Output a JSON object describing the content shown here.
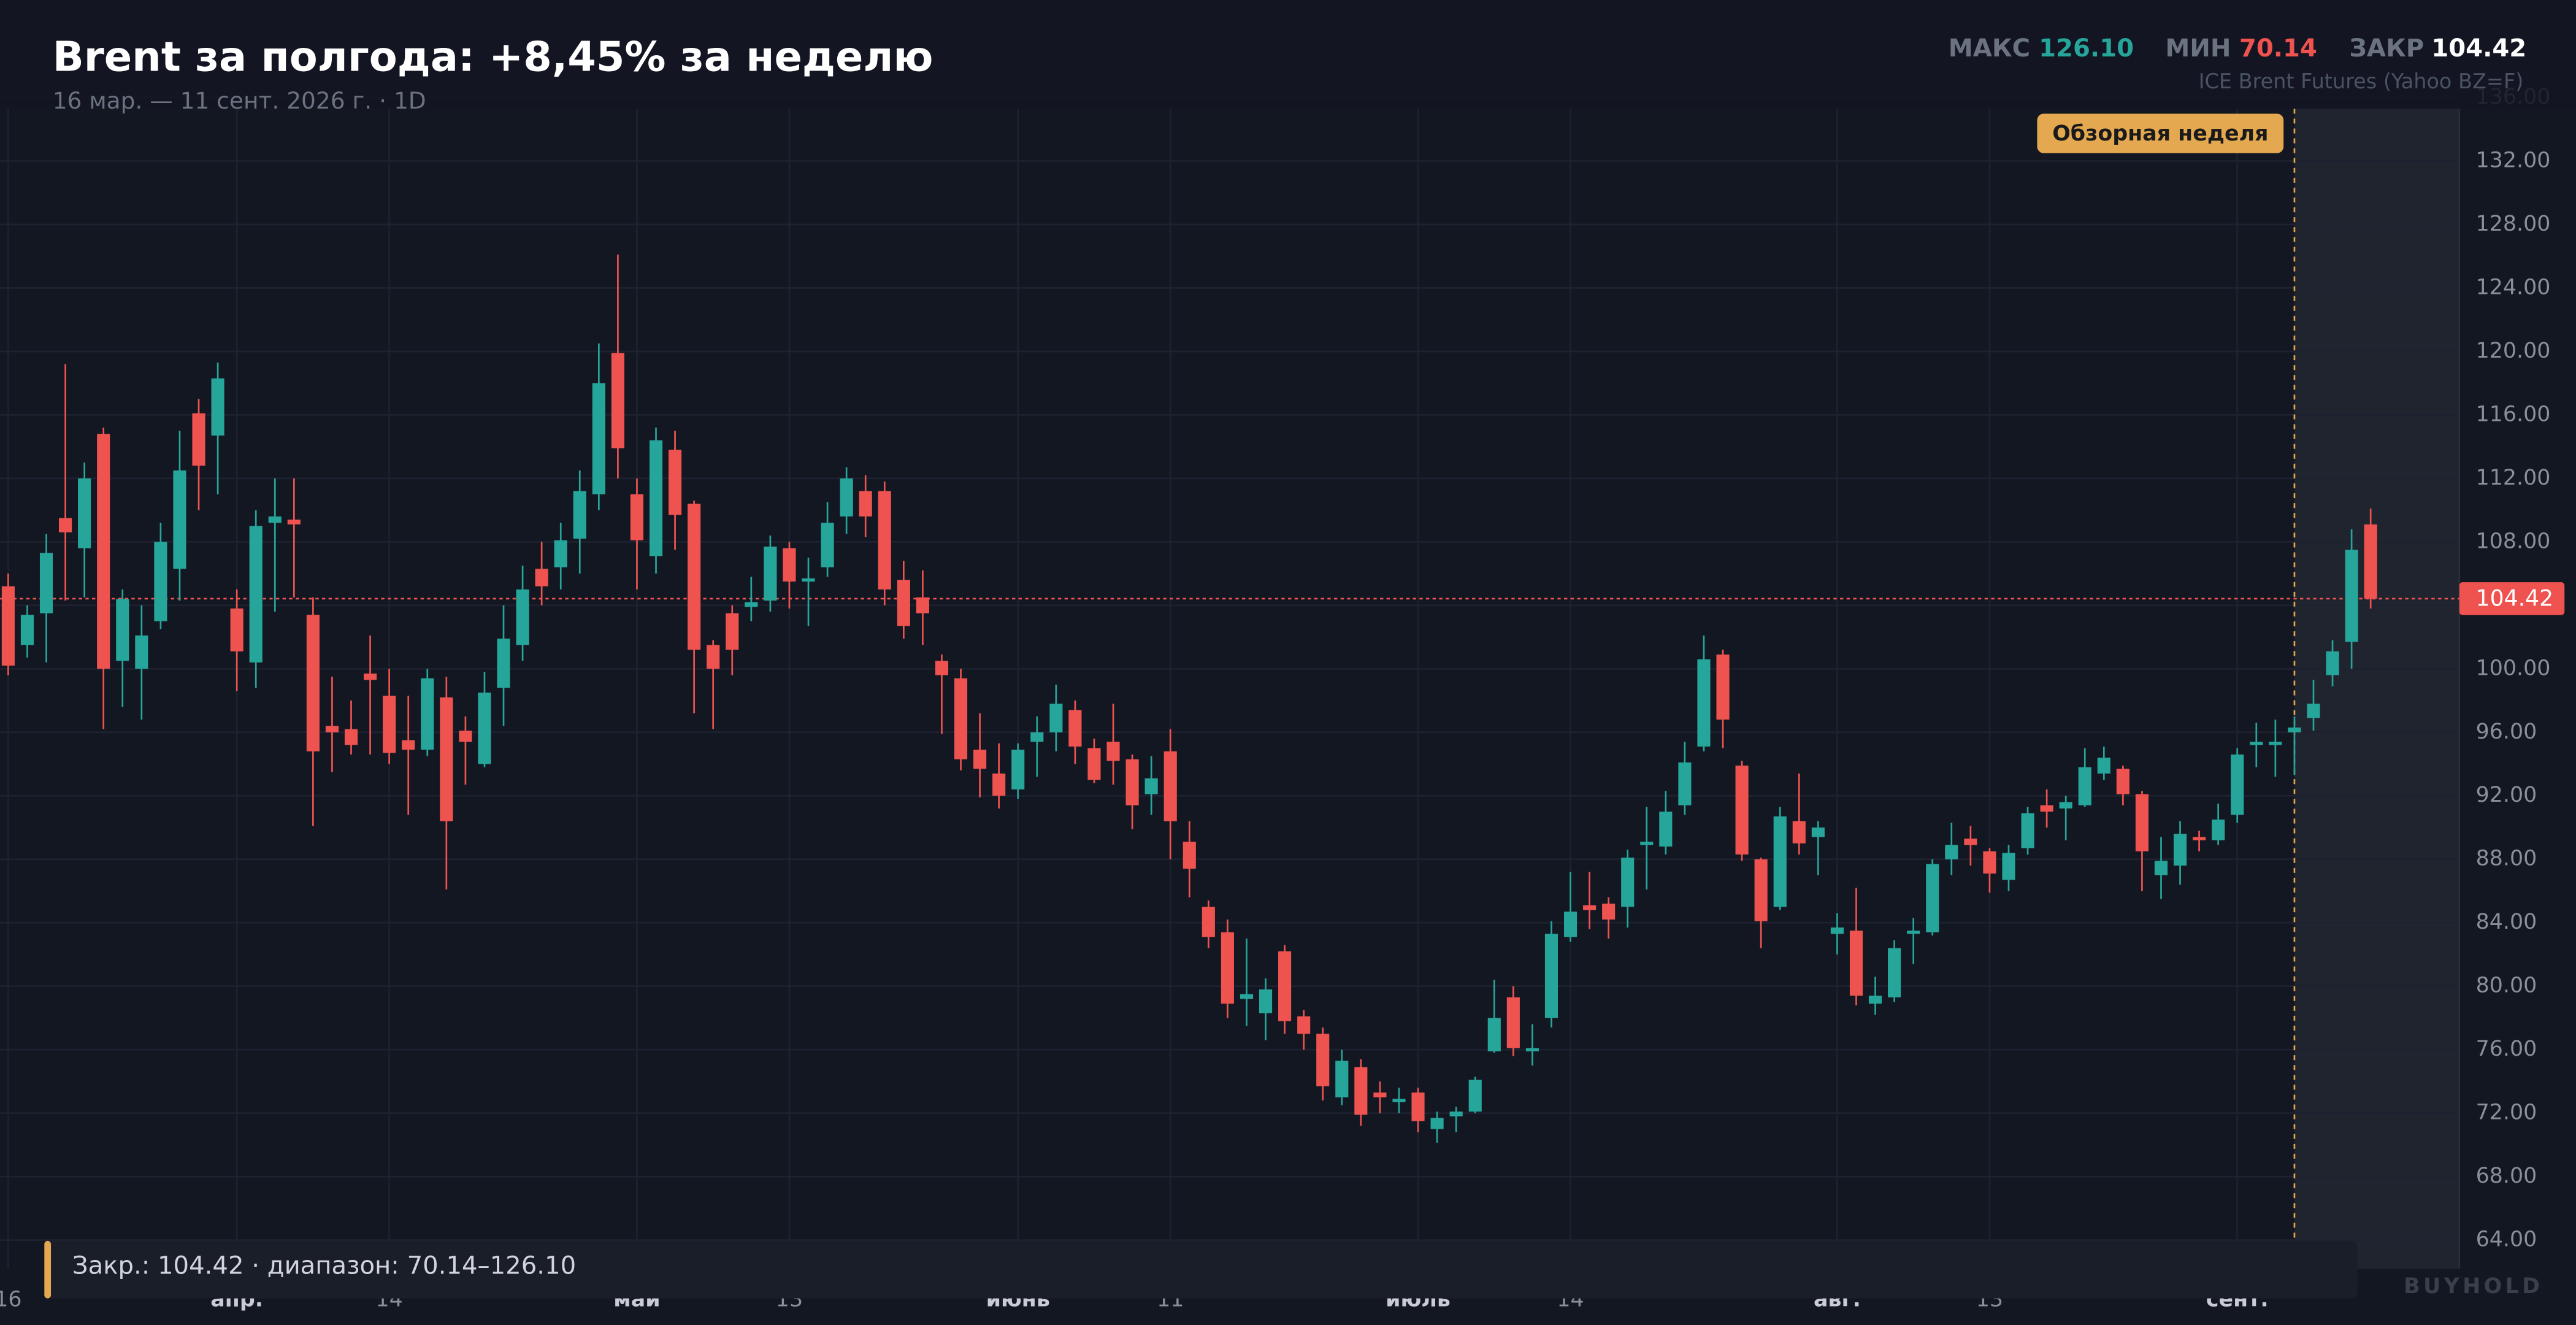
{
  "chart_data": {
    "type": "candlestick",
    "title": "Brent за полгода: +8,45% за неделю",
    "subtitle": "16 мар. — 11 сент. 2026 г. · 1D",
    "stats": [
      {
        "label": "МАКС",
        "value": "126.10"
      },
      {
        "label": "МИН",
        "value": "70.14"
      },
      {
        "label": "ЗАКР",
        "value": "104.42"
      }
    ],
    "source": "ICE Brent Futures (Yahoo BZ=F)",
    "highlight_label": "Обзорная неделя",
    "last_label": "104.42",
    "footer": "Закр.: 104.42 · диапазон: 70.14–126.10",
    "watermark": "BUYHOLD",
    "up_color": "#26a69a",
    "down_color": "#ef5350",
    "grid": true,
    "categories": [
      "16",
      null,
      null,
      null,
      null,
      null,
      null,
      null,
      null,
      null,
      null,
      null,
      "апр.",
      null,
      null,
      null,
      null,
      null,
      null,
      null,
      "14",
      null,
      null,
      null,
      null,
      null,
      null,
      null,
      null,
      null,
      null,
      null,
      null,
      "май",
      null,
      null,
      null,
      null,
      null,
      null,
      null,
      "13",
      null,
      null,
      null,
      null,
      null,
      null,
      null,
      null,
      null,
      null,
      null,
      "июнь",
      null,
      null,
      null,
      null,
      null,
      null,
      null,
      "11",
      null,
      null,
      null,
      null,
      null,
      null,
      null,
      null,
      null,
      null,
      null,
      null,
      "июль",
      null,
      null,
      null,
      null,
      null,
      null,
      null,
      "14",
      null,
      null,
      null,
      null,
      null,
      null,
      null,
      null,
      null,
      null,
      null,
      null,
      null,
      "авг.",
      null,
      null,
      null,
      null,
      null,
      null,
      null,
      "13",
      null,
      null,
      null,
      null,
      null,
      null,
      null,
      null,
      null,
      null,
      null,
      null,
      "сент.",
      null,
      null,
      null,
      null,
      null,
      null,
      null
    ],
    "open": [
      105.2,
      101.5,
      103.5,
      109.5,
      107.6,
      114.8,
      100.5,
      100,
      103,
      106.3,
      116.1,
      114.7,
      103.8,
      100.4,
      109.2,
      109.4,
      103.4,
      96.4,
      96.2,
      99.7,
      98.3,
      95.5,
      94.9,
      98.2,
      96.1,
      94,
      98.8,
      101.5,
      106.3,
      106.4,
      108.2,
      111,
      119.9,
      111,
      107.1,
      113.8,
      110.4,
      101.5,
      103.5,
      103.9,
      104.3,
      107.6,
      105.5,
      106.4,
      109.6,
      111.2,
      111.2,
      105.6,
      104.5,
      100.5,
      99.4,
      94.9,
      93.4,
      92.4,
      95.4,
      96,
      97.4,
      95,
      95.4,
      94.3,
      92.1,
      94.8,
      89.1,
      85,
      83.4,
      79.2,
      78.3,
      82.2,
      78.1,
      77,
      73,
      74.9,
      73.3,
      72.7,
      73.3,
      71,
      71.8,
      72.1,
      75.9,
      79.3,
      75.9,
      78,
      83.1,
      85.1,
      85.2,
      85,
      88.9,
      88.8,
      91.4,
      95.1,
      100.9,
      93.9,
      88,
      85,
      90.4,
      89.4,
      83.3,
      83.5,
      78.9,
      79.3,
      83.3,
      83.4,
      88,
      89.3,
      88.5,
      86.7,
      88.7,
      91.4,
      91.2,
      91.4,
      93.4,
      93.7,
      92.1,
      87,
      87.6,
      89.4,
      89.2,
      90.8,
      95.2,
      95.2,
      96,
      96.9,
      99.6,
      101.7,
      109.1
    ],
    "high": [
      106,
      104,
      108.5,
      119.2,
      113,
      115.2,
      105,
      104,
      109.2,
      115,
      117,
      119.3,
      105,
      110,
      112,
      112,
      104.5,
      99.5,
      98,
      102.1,
      100,
      98.3,
      100,
      99.5,
      97,
      99.8,
      104,
      106.5,
      108,
      109.2,
      112.5,
      120.5,
      126.1,
      112,
      115.2,
      115,
      110.6,
      101.8,
      104,
      105.8,
      108.4,
      108,
      107,
      110.5,
      112.7,
      112.2,
      111.8,
      106.8,
      106.2,
      100.9,
      100,
      97.2,
      95.3,
      95.3,
      97,
      99,
      98,
      95.6,
      97.8,
      94.6,
      94.5,
      96.2,
      90.4,
      85.4,
      84.2,
      83,
      80.5,
      82.6,
      78.5,
      77.4,
      76,
      75.4,
      74,
      73.6,
      73.6,
      72.1,
      72.4,
      74.3,
      80.4,
      80,
      77.6,
      84.1,
      87.2,
      87.2,
      85.6,
      88.6,
      91.3,
      92.3,
      95.4,
      102.1,
      101.2,
      94.2,
      88.1,
      91.3,
      93.4,
      90.4,
      84.6,
      86.2,
      80.6,
      82.9,
      84.3,
      88,
      90.3,
      90.1,
      88.7,
      88.9,
      91.3,
      92.4,
      92,
      95,
      95.1,
      93.9,
      92.3,
      89.4,
      90.4,
      89.8,
      91.5,
      95,
      96.6,
      96.8,
      97,
      99.3,
      101.8,
      108.8,
      110.1
    ],
    "low": [
      99.6,
      100.7,
      100.4,
      104.3,
      104.5,
      96.2,
      97.6,
      96.8,
      102.5,
      104.3,
      110,
      111,
      98.6,
      98.8,
      103.6,
      104.5,
      90.1,
      93.5,
      94.6,
      94.6,
      94,
      90.8,
      94.5,
      86.1,
      92.7,
      93.8,
      96.4,
      100.5,
      104,
      105,
      106,
      110,
      112,
      105,
      106,
      107.5,
      97.2,
      96.2,
      99.6,
      103,
      103.6,
      103.8,
      102.7,
      105.8,
      108.5,
      108.3,
      104,
      101.9,
      101.5,
      95.9,
      93.6,
      91.9,
      91.2,
      91.8,
      93.2,
      94.8,
      94,
      92.8,
      92.7,
      89.9,
      90.8,
      88,
      85.6,
      82.4,
      78,
      77.5,
      76.6,
      77,
      76,
      72.8,
      72.5,
      71.2,
      72,
      72,
      70.8,
      70.14,
      70.8,
      72,
      75.8,
      75.6,
      75,
      77.4,
      82.8,
      83.6,
      83,
      83.7,
      86.1,
      88.3,
      90.8,
      94.8,
      95,
      87.9,
      82.4,
      84.8,
      88.3,
      87,
      82,
      78.8,
      78.2,
      79,
      81.4,
      83.2,
      87,
      87.6,
      85.9,
      86,
      88.3,
      90,
      89.2,
      91.3,
      93,
      91.4,
      86,
      85.5,
      86.4,
      88.5,
      88.9,
      90.3,
      93.8,
      93.2,
      93.3,
      96.1,
      98.9,
      100,
      103.8
    ],
    "close": [
      100.2,
      103.4,
      107.3,
      108.6,
      112,
      100,
      104.4,
      102.1,
      108,
      112.5,
      112.8,
      118.3,
      101.1,
      109,
      109.6,
      109.1,
      94.8,
      96,
      95.2,
      99.3,
      94.7,
      94.9,
      99.4,
      90.4,
      95.4,
      98.5,
      101.9,
      105,
      105.2,
      108.1,
      111.2,
      118,
      113.9,
      108.1,
      114.4,
      109.7,
      101.2,
      100,
      101.2,
      104.2,
      107.7,
      105.5,
      105.7,
      109.2,
      112,
      109.6,
      105,
      102.7,
      103.5,
      99.6,
      94.3,
      93.7,
      92,
      94.9,
      96,
      97.8,
      95.1,
      93,
      94.2,
      91.4,
      93.1,
      90.4,
      87.4,
      83.1,
      78.9,
      79.5,
      79.8,
      77.8,
      77,
      73.7,
      75.3,
      71.9,
      73,
      72.9,
      71.5,
      71.7,
      72.1,
      74.1,
      78,
      76.1,
      76.1,
      83.3,
      84.7,
      84.8,
      84.2,
      88.1,
      89.1,
      91,
      94.1,
      100.6,
      96.8,
      88.3,
      84.1,
      90.7,
      89,
      90,
      83.7,
      79.4,
      79.4,
      82.4,
      83.5,
      87.7,
      88.9,
      88.9,
      87.1,
      88.4,
      90.9,
      91,
      91.6,
      93.8,
      94.4,
      92.1,
      88.5,
      87.9,
      89.6,
      89.2,
      90.5,
      94.6,
      95.4,
      95.4,
      96.3,
      97.8,
      101.1,
      107.5,
      104.42
    ],
    "ylim": [
      62.4,
      136.5
    ],
    "yticks": [
      {
        "value": 64,
        "label": "64.00"
      },
      {
        "value": 68,
        "label": "68.00"
      },
      {
        "value": 72,
        "label": "72.00"
      },
      {
        "value": 76,
        "label": "76.00"
      },
      {
        "value": 80,
        "label": "80.00"
      },
      {
        "value": 84,
        "label": "84.00"
      },
      {
        "value": 88,
        "label": "88.00"
      },
      {
        "value": 92,
        "label": "92.00"
      },
      {
        "value": 96,
        "label": "96.00"
      },
      {
        "value": 100,
        "label": "100.00"
      },
      {
        "value": 104,
        "label": "104.00"
      },
      {
        "value": 108,
        "label": "108.00"
      },
      {
        "value": 112,
        "label": "112.00"
      },
      {
        "value": 116,
        "label": "116.00"
      },
      {
        "value": 120,
        "label": "120.00"
      },
      {
        "value": 124,
        "label": "124.00"
      },
      {
        "value": 128,
        "label": "128.00"
      },
      {
        "value": 132,
        "label": "132.00"
      },
      {
        "value": 136,
        "label": "136.00"
      }
    ]
  }
}
